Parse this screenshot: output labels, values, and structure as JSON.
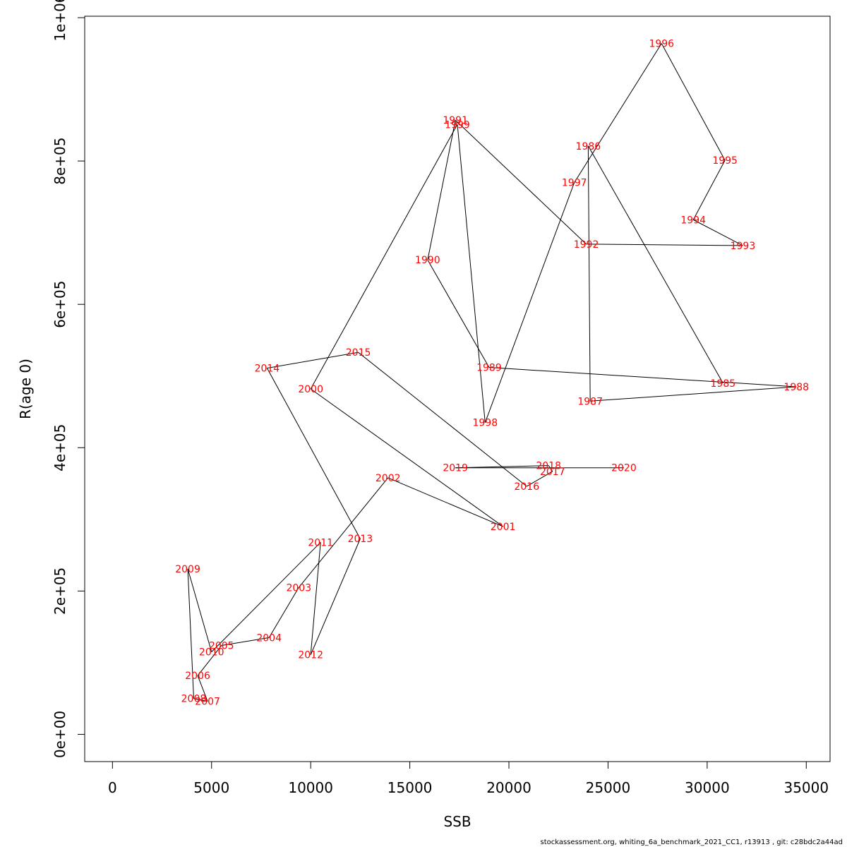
{
  "chart_data": {
    "type": "line",
    "xlabel": "SSB",
    "ylabel": "R(age 0)",
    "xlim": [
      -1400,
      36200
    ],
    "ylim": [
      -38000,
      1002000
    ],
    "x_ticks": [
      0,
      5000,
      10000,
      15000,
      20000,
      25000,
      30000,
      35000
    ],
    "x_tick_labels": [
      "0",
      "5000",
      "10000",
      "15000",
      "20000",
      "25000",
      "30000",
      "35000"
    ],
    "y_ticks": [
      0,
      200000,
      400000,
      600000,
      800000,
      1000000
    ],
    "y_tick_labels": [
      "0e+00",
      "2e+05",
      "4e+05",
      "6e+05",
      "8e+05",
      "1e+06"
    ],
    "grid": false,
    "line_color": "#000000",
    "label_color": "#ff0000",
    "points": [
      {
        "year": "1985",
        "ssb": 30800,
        "r": 490000
      },
      {
        "year": "1986",
        "ssb": 24000,
        "r": 821000
      },
      {
        "year": "1987",
        "ssb": 24100,
        "r": 465000
      },
      {
        "year": "1988",
        "ssb": 34500,
        "r": 485000
      },
      {
        "year": "1989",
        "ssb": 19000,
        "r": 512000
      },
      {
        "year": "1990",
        "ssb": 15900,
        "r": 662000
      },
      {
        "year": "1991",
        "ssb": 17300,
        "r": 857000
      },
      {
        "year": "1992",
        "ssb": 23900,
        "r": 684000
      },
      {
        "year": "1993",
        "ssb": 31800,
        "r": 682000
      },
      {
        "year": "1994",
        "ssb": 29300,
        "r": 718000
      },
      {
        "year": "1995",
        "ssb": 30900,
        "r": 801000
      },
      {
        "year": "1996",
        "ssb": 27700,
        "r": 964000
      },
      {
        "year": "1997",
        "ssb": 23300,
        "r": 770000
      },
      {
        "year": "1998",
        "ssb": 18800,
        "r": 435000
      },
      {
        "year": "1999",
        "ssb": 17400,
        "r": 851000
      },
      {
        "year": "2000",
        "ssb": 10000,
        "r": 482000
      },
      {
        "year": "2001",
        "ssb": 19700,
        "r": 290000
      },
      {
        "year": "2002",
        "ssb": 13900,
        "r": 358000
      },
      {
        "year": "2003",
        "ssb": 9400,
        "r": 205000
      },
      {
        "year": "2004",
        "ssb": 7900,
        "r": 135000
      },
      {
        "year": "2005",
        "ssb": 5500,
        "r": 124000
      },
      {
        "year": "2006",
        "ssb": 4300,
        "r": 82000
      },
      {
        "year": "2007",
        "ssb": 4800,
        "r": 46000
      },
      {
        "year": "2008",
        "ssb": 4100,
        "r": 50000
      },
      {
        "year": "2009",
        "ssb": 3800,
        "r": 231000
      },
      {
        "year": "2010",
        "ssb": 5000,
        "r": 115000
      },
      {
        "year": "2011",
        "ssb": 10500,
        "r": 268000
      },
      {
        "year": "2012",
        "ssb": 10000,
        "r": 111000
      },
      {
        "year": "2013",
        "ssb": 12500,
        "r": 273000
      },
      {
        "year": "2014",
        "ssb": 7800,
        "r": 511000
      },
      {
        "year": "2015",
        "ssb": 12400,
        "r": 533000
      },
      {
        "year": "2016",
        "ssb": 20900,
        "r": 346000
      },
      {
        "year": "2017",
        "ssb": 22200,
        "r": 367000
      },
      {
        "year": "2018",
        "ssb": 22000,
        "r": 375000
      },
      {
        "year": "2019",
        "ssb": 17300,
        "r": 372000
      },
      {
        "year": "2020",
        "ssb": 25800,
        "r": 372000
      }
    ]
  },
  "footer": "stockassessment.org, whiting_6a_benchmark_2021_CC1, r13913 , git: c28bdc2a44ad"
}
